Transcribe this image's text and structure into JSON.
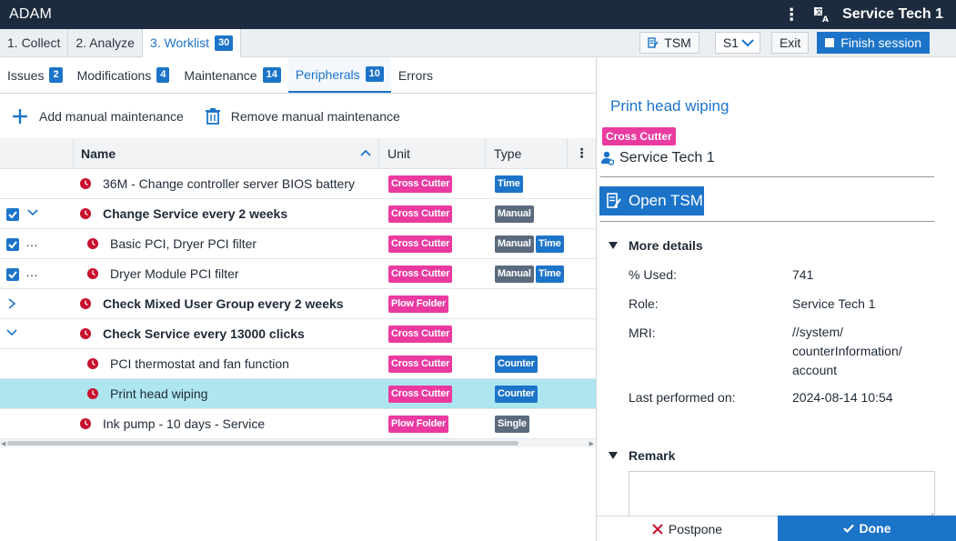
{
  "app": {
    "title": "ADAM",
    "user": "Service Tech 1"
  },
  "steps": [
    {
      "label": "1. Collect"
    },
    {
      "label": "2. Analyze"
    },
    {
      "label": "3. Worklist",
      "count": "30"
    }
  ],
  "step_actions": {
    "tsm_label": "TSM",
    "station": "S1",
    "exit_label": "Exit",
    "finish_label": "Finish session"
  },
  "categories": [
    {
      "label": "Issues",
      "count": "2"
    },
    {
      "label": "Modifications",
      "count": "4"
    },
    {
      "label": "Maintenance",
      "count": "14"
    },
    {
      "label": "Peripherals",
      "count": "10"
    },
    {
      "label": "Errors"
    }
  ],
  "actions": {
    "add_label": "Add manual maintenance",
    "remove_label": "Remove manual maintenance"
  },
  "table": {
    "columns": {
      "name": "Name",
      "unit": "Unit",
      "type": "Type"
    },
    "rows": [
      {
        "name": "36M - Change controller server BIOS battery",
        "unit": "Cross Cutter",
        "types": [
          "Time"
        ]
      },
      {
        "name": "Change Service every 2 weeks",
        "unit": "Cross Cutter",
        "types": [
          "Manual"
        ]
      },
      {
        "name": "Basic PCI, Dryer PCI filter",
        "unit": "Cross Cutter",
        "types": [
          "Manual",
          "Time"
        ]
      },
      {
        "name": "Dryer Module PCI filter",
        "unit": "Cross Cutter",
        "types": [
          "Manual",
          "Time"
        ]
      },
      {
        "name": "Check Mixed User Group every 2 weeks",
        "unit": "Plow Folder",
        "types": []
      },
      {
        "name": "Check Service every 13000 clicks",
        "unit": "Cross Cutter",
        "types": []
      },
      {
        "name": "PCI thermostat and fan function",
        "unit": "Cross Cutter",
        "types": [
          "Counter"
        ]
      },
      {
        "name": "Print head wiping",
        "unit": "Cross Cutter",
        "types": [
          "Counter"
        ]
      },
      {
        "name": "Ink pump - 10 days - Service",
        "unit": "Plow Folder",
        "types": [
          "Single"
        ]
      }
    ]
  },
  "details": {
    "title": "Print head wiping",
    "unit": "Cross Cutter",
    "assignee": "Service Tech 1",
    "open_tsm_label": "Open TSM",
    "more_details_label": "More details",
    "fields": [
      {
        "label": "% Used:",
        "value": "741"
      },
      {
        "label": "Role:",
        "value": "Service Tech 1"
      },
      {
        "label": "MRI:",
        "value_lines": [
          "//system/",
          "counterInformation/",
          "account"
        ]
      },
      {
        "label": "Last performed on:",
        "value": "2024-08-14 10:54"
      }
    ],
    "remark_label": "Remark"
  },
  "footer": {
    "postpone_label": "Postpone",
    "done_label": "Done"
  },
  "colors": {
    "accent": "#1c74c9",
    "topbar": "#1c2b3d",
    "pink_tag": "#ea3aa0",
    "gray_tag": "#5b6b7d",
    "selected_row": "#aee6f0",
    "clock": "#c8102e"
  }
}
